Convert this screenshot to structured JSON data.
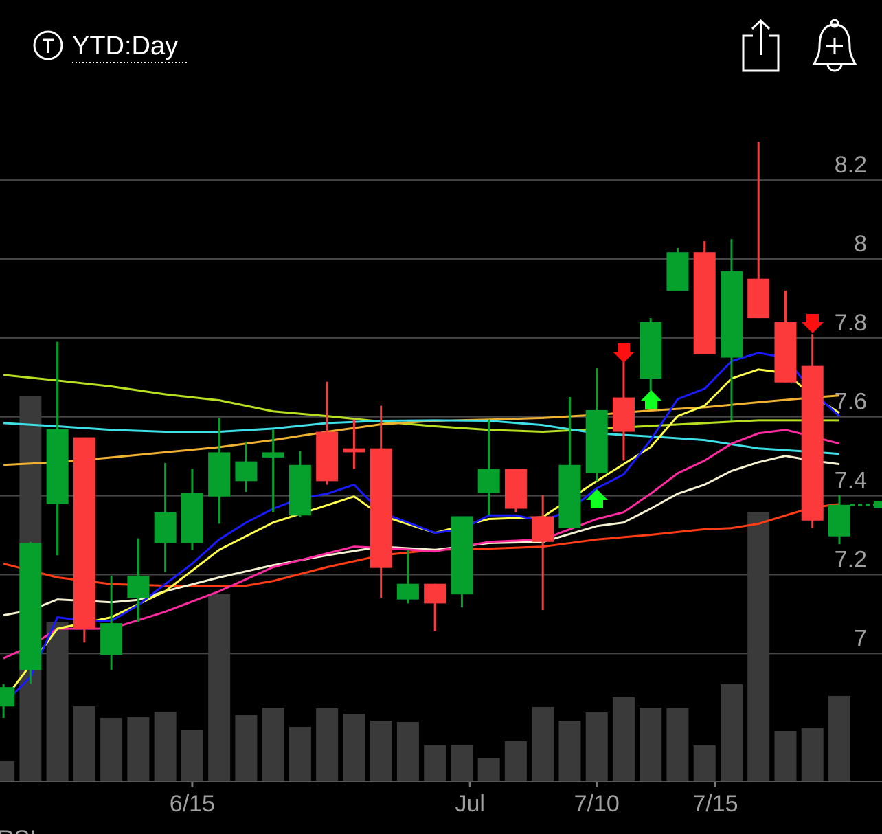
{
  "header": {
    "title": "YTD:Day"
  },
  "chart_data": {
    "type": "candlestick",
    "x": [
      0,
      1,
      2,
      3,
      4,
      5,
      6,
      7,
      8,
      9,
      10,
      11,
      12,
      13,
      14,
      15,
      16,
      17,
      18,
      19,
      20,
      21,
      22,
      23,
      24,
      25,
      26,
      27,
      28,
      29,
      30,
      31
    ],
    "open": [
      6.866,
      6.958,
      7.379,
      7.548,
      6.997,
      7.141,
      7.28,
      7.28,
      7.398,
      7.437,
      7.497,
      7.35,
      7.562,
      7.52,
      7.52,
      7.137,
      7.177,
      7.15,
      7.407,
      7.468,
      7.348,
      7.318,
      7.457,
      7.649,
      7.697,
      7.92,
      8.017,
      7.75,
      7.95,
      7.84,
      7.729,
      7.297
    ],
    "high": [
      6.923,
      7.283,
      7.79,
      7.548,
      7.197,
      7.292,
      7.483,
      7.468,
      7.598,
      7.537,
      7.567,
      7.513,
      7.689,
      7.593,
      7.628,
      7.263,
      7.177,
      7.348,
      7.593,
      7.468,
      7.402,
      7.65,
      7.723,
      7.753,
      7.85,
      8.028,
      8.045,
      8.05,
      8.297,
      7.92,
      7.81,
      7.402
    ],
    "low": [
      6.837,
      6.923,
      7.249,
      7.028,
      6.958,
      7.08,
      7.207,
      7.263,
      7.329,
      7.41,
      7.358,
      7.346,
      7.428,
      7.468,
      7.141,
      7.127,
      7.057,
      7.117,
      7.35,
      7.358,
      7.11,
      7.318,
      7.437,
      7.489,
      7.663,
      7.92,
      7.758,
      7.59,
      7.85,
      7.687,
      7.318,
      7.277
    ],
    "close": [
      6.915,
      7.28,
      7.569,
      7.063,
      7.077,
      7.197,
      7.358,
      7.407,
      7.51,
      7.487,
      7.51,
      7.478,
      7.437,
      7.51,
      7.217,
      7.177,
      7.127,
      7.348,
      7.468,
      7.367,
      7.283,
      7.478,
      7.617,
      7.562,
      7.84,
      8.017,
      7.758,
      7.969,
      7.85,
      7.687,
      7.337,
      7.377
    ],
    "up_color": "#06a02c",
    "down_color": "#fc3a3c",
    "volume": {
      "axis": "y2",
      "color": "#3a3a3a",
      "values": [
        30,
        562,
        233,
        110,
        93,
        94,
        102,
        76,
        273,
        97,
        108,
        80,
        107,
        99,
        89,
        87,
        53,
        54,
        34,
        59,
        109,
        89,
        101,
        123,
        108,
        107,
        53,
        142,
        393,
        74,
        78,
        125
      ]
    },
    "lines": [
      {
        "color": "#b8e020",
        "x": [
          0,
          2,
          4,
          6,
          8,
          10,
          12,
          14,
          16,
          18,
          20,
          22,
          24,
          26,
          28,
          30,
          31
        ],
        "values": [
          7.706,
          7.692,
          7.677,
          7.657,
          7.642,
          7.614,
          7.602,
          7.588,
          7.576,
          7.567,
          7.562,
          7.569,
          7.577,
          7.584,
          7.591,
          7.591,
          7.591
        ]
      },
      {
        "color": "#f0b030",
        "x": [
          0,
          2,
          4,
          6,
          8,
          10,
          12,
          14,
          16,
          18,
          20,
          22,
          24,
          26,
          28,
          30,
          31
        ],
        "values": [
          7.478,
          7.485,
          7.497,
          7.51,
          7.523,
          7.541,
          7.562,
          7.581,
          7.59,
          7.593,
          7.597,
          7.605,
          7.616,
          7.624,
          7.637,
          7.649,
          7.654
        ]
      },
      {
        "color": "#3ee0e8",
        "x": [
          0,
          2,
          4,
          6,
          8,
          10,
          12,
          14,
          16,
          18,
          20,
          22,
          24,
          26,
          28,
          30,
          31
        ],
        "values": [
          7.584,
          7.576,
          7.567,
          7.562,
          7.562,
          7.57,
          7.584,
          7.59,
          7.591,
          7.59,
          7.579,
          7.558,
          7.55,
          7.541,
          7.52,
          7.511,
          7.506
        ]
      },
      {
        "color": "#ff3c14",
        "x": [
          0,
          2,
          4,
          6,
          8,
          9,
          10,
          12,
          14,
          16,
          18,
          20,
          22,
          24,
          26,
          27,
          28,
          29,
          30,
          31
        ],
        "values": [
          7.228,
          7.193,
          7.176,
          7.172,
          7.172,
          7.172,
          7.184,
          7.219,
          7.249,
          7.263,
          7.266,
          7.271,
          7.289,
          7.301,
          7.315,
          7.318,
          7.329,
          7.35,
          7.37,
          7.379
        ]
      },
      {
        "color": "#f5f0d0",
        "x": [
          0,
          1,
          2,
          4,
          5,
          6,
          8,
          10,
          12,
          14,
          16,
          18,
          20,
          22,
          23,
          24,
          25,
          26,
          27,
          28,
          29,
          30,
          31
        ],
        "values": [
          7.097,
          7.11,
          7.137,
          7.13,
          7.136,
          7.158,
          7.193,
          7.224,
          7.249,
          7.271,
          7.263,
          7.28,
          7.283,
          7.323,
          7.332,
          7.367,
          7.405,
          7.428,
          7.463,
          7.485,
          7.501,
          7.489,
          7.48
        ]
      },
      {
        "color": "#ff2aa0",
        "x": [
          0,
          1,
          2,
          4,
          6,
          8,
          10,
          12,
          13,
          14,
          16,
          18,
          20,
          22,
          23,
          24,
          25,
          26,
          27,
          28,
          29,
          30,
          31
        ],
        "values": [
          6.988,
          7.019,
          7.063,
          7.063,
          7.106,
          7.158,
          7.219,
          7.254,
          7.271,
          7.268,
          7.259,
          7.283,
          7.289,
          7.341,
          7.358,
          7.405,
          7.457,
          7.489,
          7.532,
          7.558,
          7.567,
          7.55,
          7.532
        ]
      },
      {
        "color": "#ffff4a",
        "x": [
          0,
          2,
          4,
          6,
          8,
          10,
          12,
          13,
          14,
          16,
          18,
          20,
          22,
          24,
          25,
          26,
          27,
          28,
          29,
          30,
          31
        ],
        "values": [
          6.88,
          7.063,
          7.092,
          7.158,
          7.263,
          7.332,
          7.376,
          7.398,
          7.35,
          7.306,
          7.341,
          7.346,
          7.437,
          7.523,
          7.602,
          7.628,
          7.697,
          7.72,
          7.711,
          7.654,
          7.61
        ]
      },
      {
        "color": "#1a1aff",
        "x": [
          0,
          1,
          2,
          3,
          4,
          5,
          6,
          7,
          8,
          9,
          10,
          11,
          12,
          13,
          14,
          15,
          16,
          17,
          18,
          19,
          20,
          21,
          22,
          23,
          24,
          25,
          26,
          27,
          28,
          29,
          30,
          31
        ],
        "values": [
          6.871,
          6.941,
          7.092,
          7.083,
          7.083,
          7.123,
          7.176,
          7.228,
          7.289,
          7.332,
          7.367,
          7.393,
          7.405,
          7.428,
          7.358,
          7.332,
          7.306,
          7.315,
          7.35,
          7.35,
          7.336,
          7.363,
          7.419,
          7.454,
          7.541,
          7.645,
          7.671,
          7.741,
          7.762,
          7.75,
          7.663,
          7.602
        ]
      }
    ],
    "xlim": [
      -0.13,
      32.58
    ],
    "xticks": [
      {
        "value": 7,
        "label": "6/15"
      },
      {
        "value": 17.3,
        "label": "Jul"
      },
      {
        "value": 22,
        "label": "7/10"
      },
      {
        "value": 26.4,
        "label": "7/15"
      }
    ],
    "ylim": [
      6.675,
      8.43
    ],
    "yticks": [
      7,
      7.2,
      7.4,
      7.6,
      7.8,
      8,
      8.2
    ],
    "y2lim": [
      0,
      1008
    ],
    "grid": true
  },
  "footer": {
    "label": "RSI"
  }
}
